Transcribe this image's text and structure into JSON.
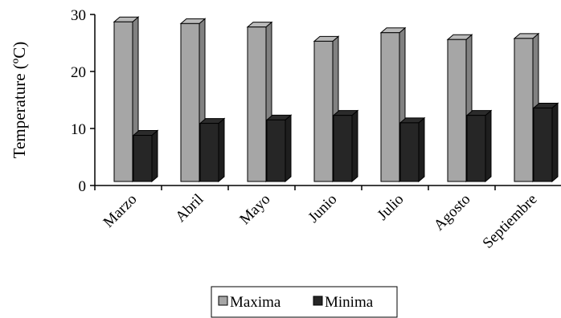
{
  "chart_data": {
    "type": "bar",
    "variant": "3d-clustered",
    "title": "",
    "xlabel": "",
    "ylabel": "Temperature (ºC)",
    "ylim": [
      0,
      30
    ],
    "yticks": [
      0,
      10,
      20,
      30
    ],
    "grid": false,
    "legend_position": "bottom",
    "categories": [
      "Marzo",
      "Abril",
      "Mayo",
      "Junio",
      "Julio",
      "Agosto",
      "Septiembre"
    ],
    "series": [
      {
        "name": "Maxima",
        "color": "#a6a6a6",
        "values": [
          28.7,
          28.4,
          27.8,
          25.3,
          26.8,
          25.6,
          25.8
        ]
      },
      {
        "name": "Minima",
        "color": "#262626",
        "values": [
          8.8,
          10.9,
          11.5,
          12.3,
          11.0,
          12.3,
          13.6
        ]
      }
    ]
  }
}
